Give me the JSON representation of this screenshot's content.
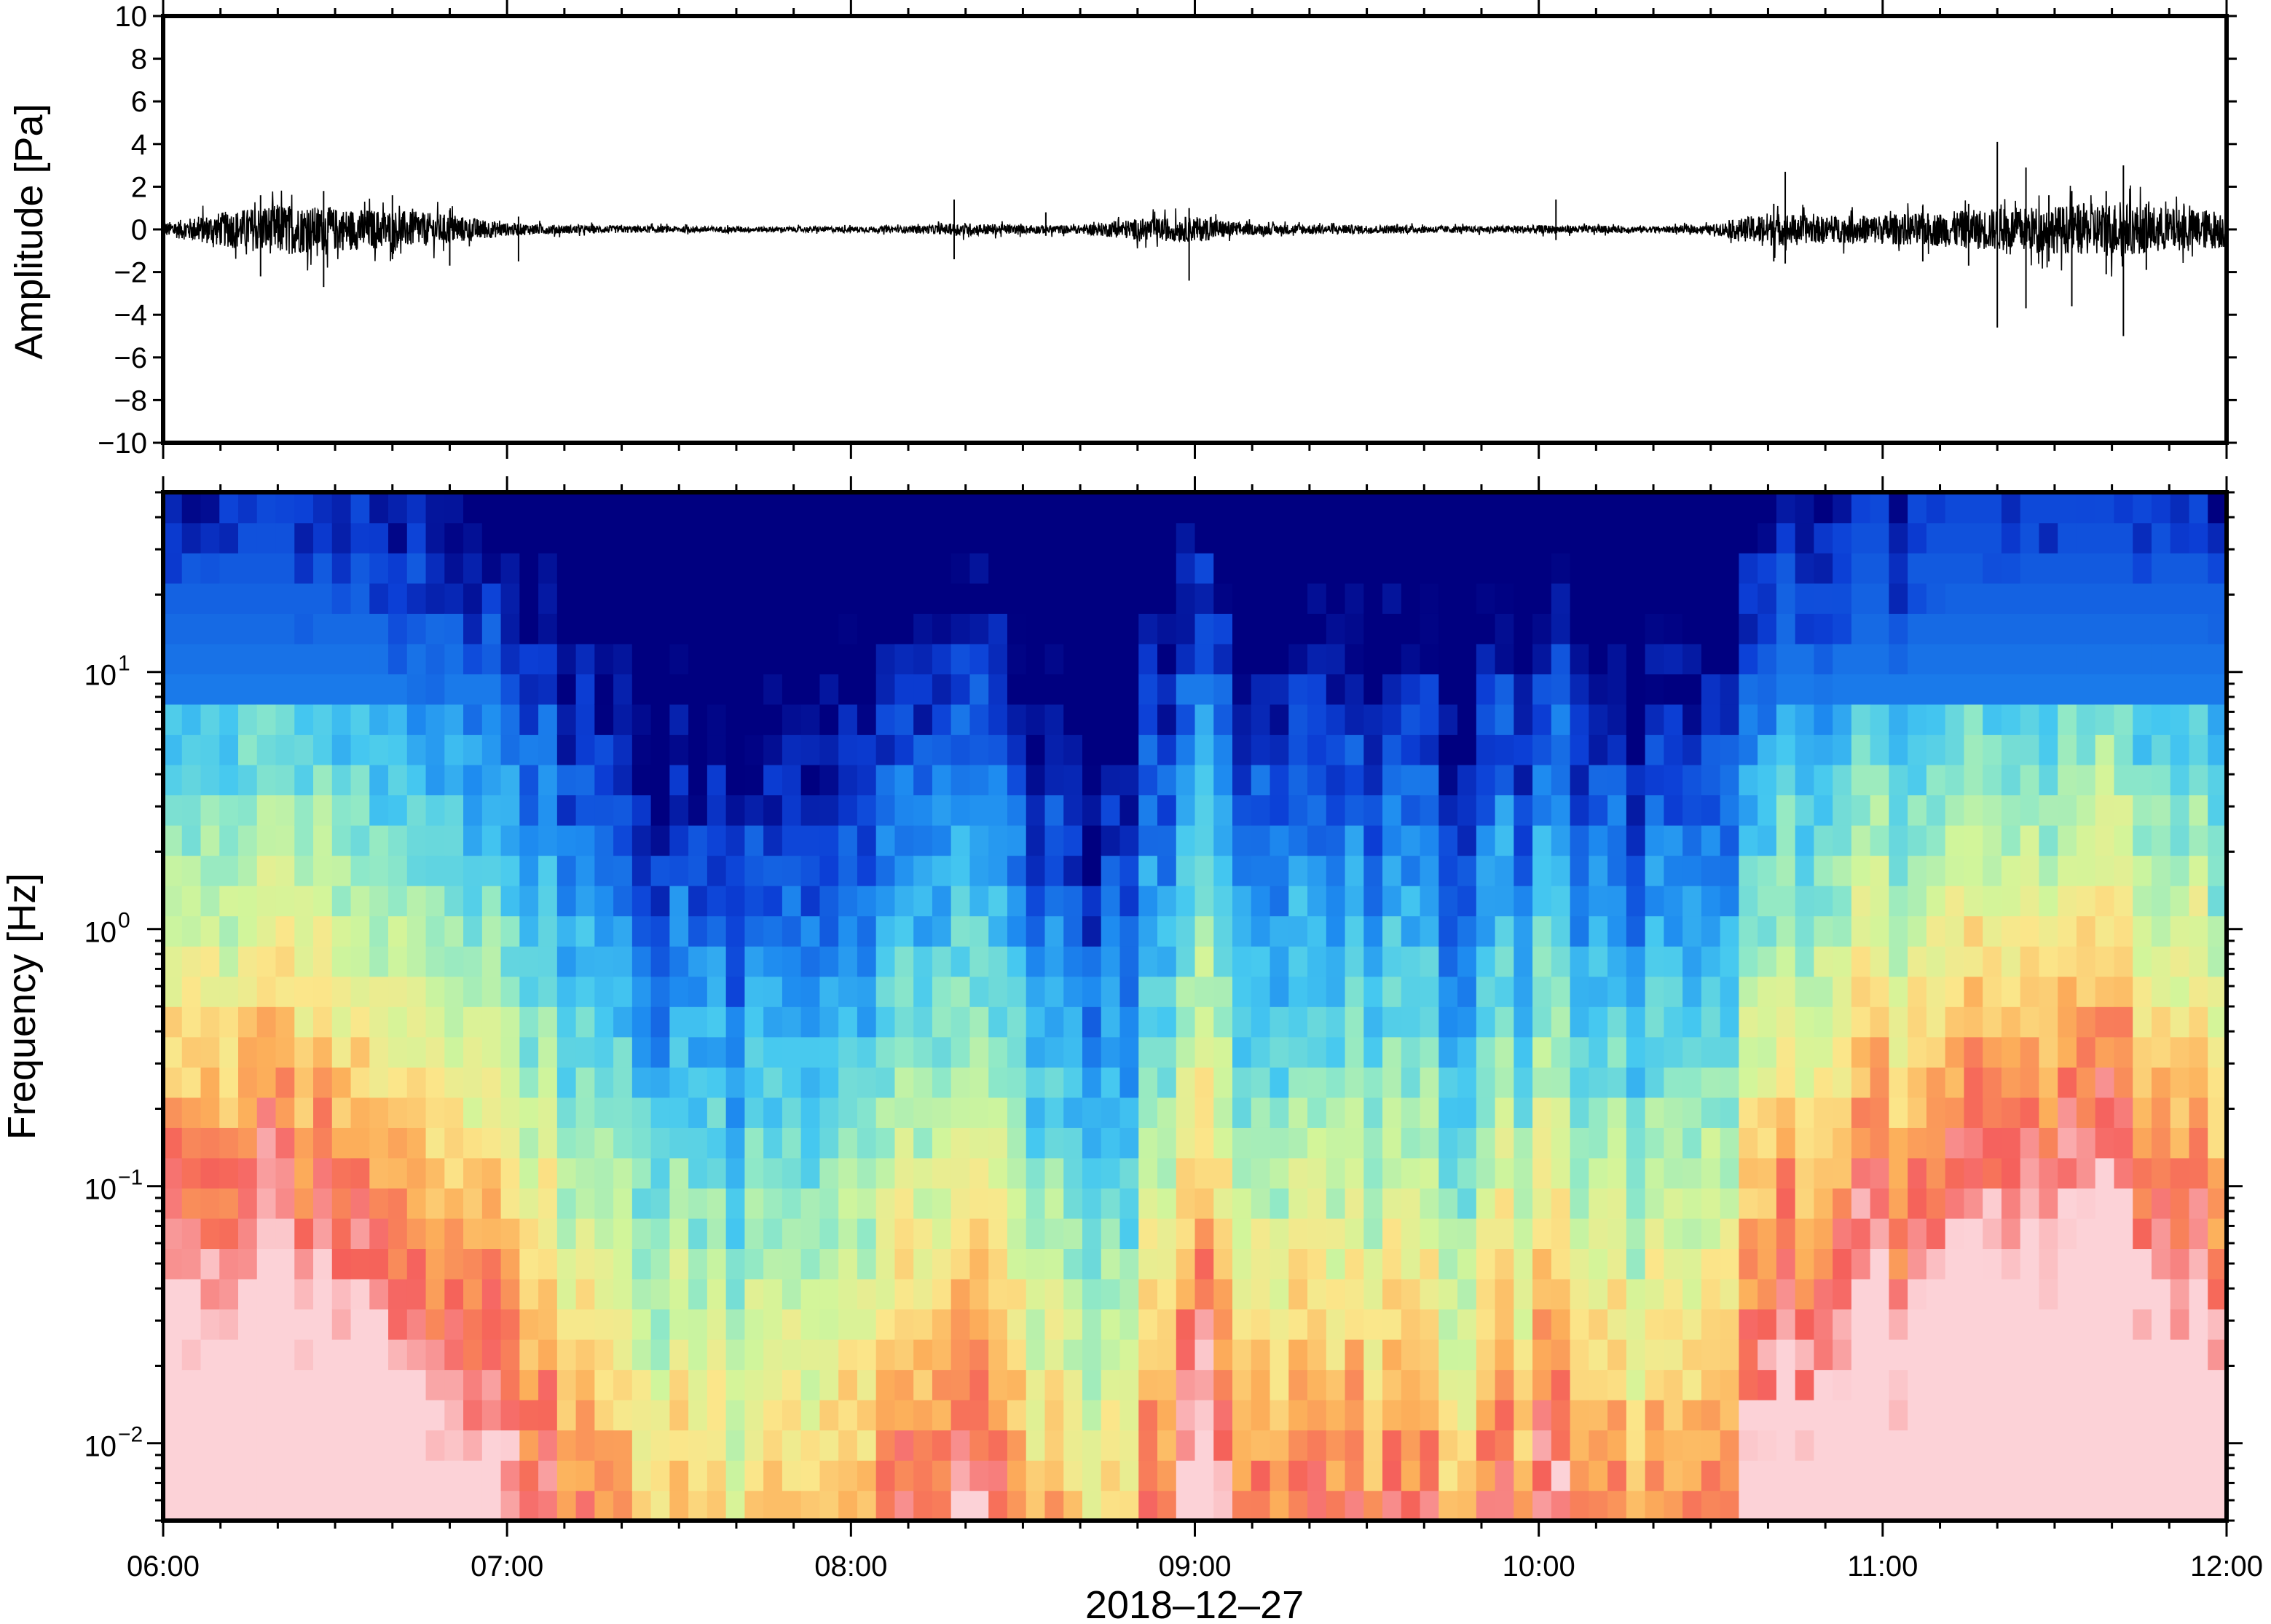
{
  "chart_data": [
    {
      "type": "line",
      "panel": "waveform",
      "ylabel": "Amplitude [Pa]",
      "ylim": [
        -10,
        10
      ],
      "yticks": [
        10,
        8,
        6,
        4,
        2,
        0,
        -2,
        -4,
        -6,
        -8,
        -10
      ],
      "ytick_labels": [
        "10",
        "8",
        "6",
        "4",
        "2",
        "0",
        "−2",
        "−4",
        "−6",
        "−8",
        "−10"
      ],
      "xlim": [
        "06:00",
        "12:00"
      ],
      "grid": false,
      "line_color": "#000000",
      "envelope_profile": {
        "times": [
          "06:00",
          "06:10",
          "06:20",
          "06:30",
          "06:40",
          "06:50",
          "07:00",
          "07:10",
          "07:30",
          "07:50",
          "08:10",
          "08:20",
          "08:30",
          "08:40",
          "08:50",
          "09:00",
          "09:10",
          "09:30",
          "09:50",
          "10:00",
          "10:20",
          "10:30",
          "10:40",
          "10:50",
          "11:00",
          "11:10",
          "11:20",
          "11:30",
          "11:40",
          "11:50",
          "12:00"
        ],
        "amplitude_pa": [
          0.3,
          0.8,
          1.2,
          1.0,
          0.9,
          0.7,
          0.3,
          0.2,
          0.15,
          0.12,
          0.15,
          0.3,
          0.2,
          0.2,
          0.5,
          0.6,
          0.25,
          0.2,
          0.15,
          0.2,
          0.15,
          0.2,
          0.8,
          0.6,
          0.7,
          0.8,
          1.0,
          1.1,
          1.3,
          1.0,
          0.9
        ]
      },
      "spikes": [
        {
          "time": "06:17",
          "min": -2.2,
          "max": 1.6
        },
        {
          "time": "06:28",
          "min": -2.7,
          "max": 1.8
        },
        {
          "time": "06:40",
          "min": -1.4,
          "max": 1.6
        },
        {
          "time": "06:50",
          "min": -1.7,
          "max": 0.9
        },
        {
          "time": "07:02",
          "min": -1.5,
          "max": 0.6
        },
        {
          "time": "08:18",
          "min": -1.4,
          "max": 1.4
        },
        {
          "time": "08:34",
          "min": -0.3,
          "max": 0.8
        },
        {
          "time": "08:59",
          "min": -2.4,
          "max": 1.0
        },
        {
          "time": "10:03",
          "min": -0.5,
          "max": 1.4
        },
        {
          "time": "10:41",
          "min": -1.5,
          "max": 1.2
        },
        {
          "time": "10:43",
          "min": -1.6,
          "max": 2.7
        },
        {
          "time": "11:07",
          "min": -1.5,
          "max": 1.1
        },
        {
          "time": "11:15",
          "min": -1.7,
          "max": 1.2
        },
        {
          "time": "11:20",
          "min": -4.6,
          "max": 4.1
        },
        {
          "time": "11:25",
          "min": -3.7,
          "max": 2.9
        },
        {
          "time": "11:29",
          "min": -1.5,
          "max": 1.6
        },
        {
          "time": "11:33",
          "min": -3.6,
          "max": 1.8
        },
        {
          "time": "11:39",
          "min": -2.1,
          "max": 1.8
        },
        {
          "time": "11:42",
          "min": -5.0,
          "max": 3.0
        },
        {
          "time": "11:46",
          "min": -1.9,
          "max": 1.2
        }
      ]
    },
    {
      "type": "heatmap",
      "panel": "spectrogram",
      "ylabel": "Frequency [Hz]",
      "xlabel": "2018–12–27",
      "yscale": "log",
      "ylim": [
        0.005,
        50
      ],
      "yticks": [
        0.01,
        0.1,
        1,
        10
      ],
      "ytick_labels": [
        {
          "base": "10",
          "exp": "−2"
        },
        {
          "base": "10",
          "exp": "−1"
        },
        {
          "base": "10",
          "exp": "0"
        },
        {
          "base": "10",
          "exp": "1"
        }
      ],
      "x_tick_labels": [
        "06:00",
        "07:00",
        "08:00",
        "09:00",
        "10:00",
        "11:00",
        "12:00"
      ],
      "colormap": [
        "#000080",
        "#0c3fd6",
        "#1e8cf0",
        "#45c8f0",
        "#8ee8c8",
        "#d2f59a",
        "#fbe68a",
        "#fcaf5a",
        "#f55f5a",
        "#fcd2d7"
      ],
      "grid": false,
      "intensity_profile": {
        "times": [
          "06:00",
          "06:15",
          "06:30",
          "06:45",
          "07:00",
          "07:15",
          "07:30",
          "07:45",
          "08:00",
          "08:10",
          "08:20",
          "08:30",
          "08:40",
          "08:45",
          "08:50",
          "09:00",
          "09:10",
          "09:30",
          "09:50",
          "10:00",
          "10:10",
          "10:20",
          "10:30",
          "10:40",
          "11:00",
          "11:20",
          "11:40",
          "12:00"
        ],
        "level": [
          0.85,
          0.95,
          0.95,
          0.9,
          0.75,
          0.55,
          0.45,
          0.45,
          0.5,
          0.65,
          0.75,
          0.55,
          0.45,
          0.35,
          0.5,
          0.75,
          0.6,
          0.55,
          0.5,
          0.65,
          0.55,
          0.5,
          0.5,
          0.8,
          0.9,
          1.0,
          1.0,
          0.9
        ]
      }
    }
  ]
}
